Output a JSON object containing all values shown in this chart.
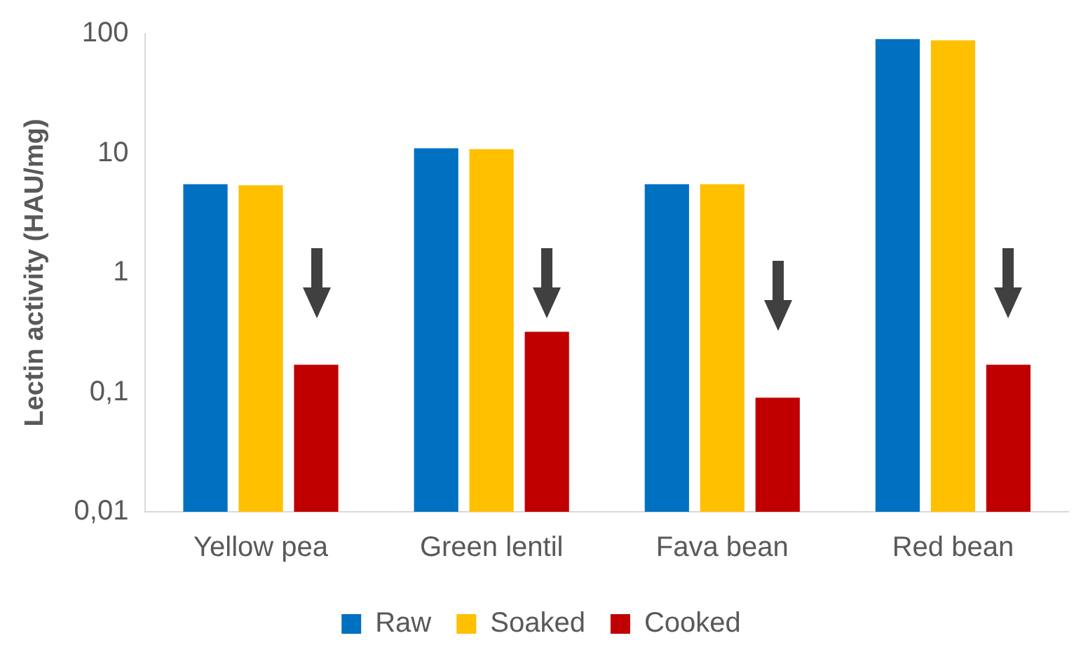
{
  "chart_data": {
    "type": "bar",
    "ylabel": "Lectin activity (HAU/mg)",
    "categories": [
      "Yellow pea",
      "Green lentil",
      "Fava bean",
      "Red bean"
    ],
    "series": [
      {
        "name": "Raw",
        "color": "#0070c0",
        "values": [
          5.5,
          11,
          5.5,
          90
        ]
      },
      {
        "name": "Soaked",
        "color": "#ffc000",
        "values": [
          5.4,
          10.8,
          5.5,
          88
        ]
      },
      {
        "name": "Cooked",
        "color": "#c00000",
        "values": [
          0.17,
          0.32,
          0.09,
          0.17
        ]
      }
    ],
    "log": "y",
    "ylim": [
      0.01,
      100
    ],
    "yticks": [
      {
        "value": 0.01,
        "label": "0,01"
      },
      {
        "value": 0.1,
        "label": "0,1"
      },
      {
        "value": 1,
        "label": "1"
      },
      {
        "value": 10,
        "label": "10"
      },
      {
        "value": 100,
        "label": "100"
      }
    ],
    "grid": false,
    "legend": "bottom"
  }
}
